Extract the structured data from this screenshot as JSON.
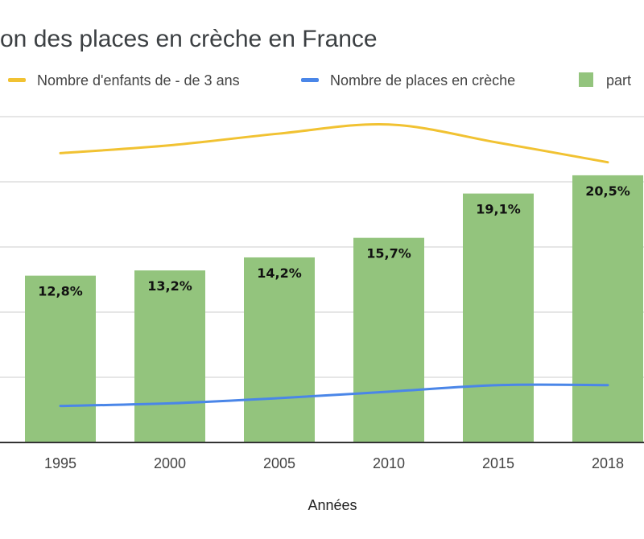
{
  "colors": {
    "background": "#ffffff",
    "bars": "#93c47d",
    "yellow_line": "#f1c232",
    "blue_line": "#4a86e8",
    "grid": "#cccccc",
    "axis": "#333333"
  },
  "chart_data": {
    "type": "bar",
    "title": "on des places en crèche en France",
    "xlabel": "Années",
    "ylabel": "",
    "categories": [
      "1995",
      "2000",
      "2005",
      "2010",
      "2015",
      "2018"
    ],
    "ylim": [
      0,
      25
    ],
    "gridlines": [
      5,
      10,
      15,
      20,
      25
    ],
    "series": [
      {
        "name": "part",
        "type": "bar",
        "values": [
          12.8,
          13.2,
          14.2,
          15.7,
          19.1,
          20.5
        ],
        "labels": [
          "12,8%",
          "13,2%",
          "14,2%",
          "15,7%",
          "19,1%",
          "20,5%"
        ]
      },
      {
        "name": "Nombre d'enfants de - de 3 ans",
        "type": "line",
        "values": [
          22.2,
          22.8,
          23.7,
          24.4,
          23.0,
          21.5
        ]
      },
      {
        "name": "Nombre de places en crèche",
        "type": "line",
        "values": [
          2.8,
          3.0,
          3.4,
          3.9,
          4.4,
          4.4
        ]
      }
    ],
    "legend": {
      "position": "top",
      "items": [
        {
          "label": "Nombre d'enfants de - de 3 ans",
          "kind": "line",
          "color": "#f1c232"
        },
        {
          "label": "Nombre de places en crèche",
          "kind": "line",
          "color": "#4a86e8"
        },
        {
          "label": "part",
          "kind": "box",
          "color": "#93c47d"
        }
      ]
    }
  }
}
